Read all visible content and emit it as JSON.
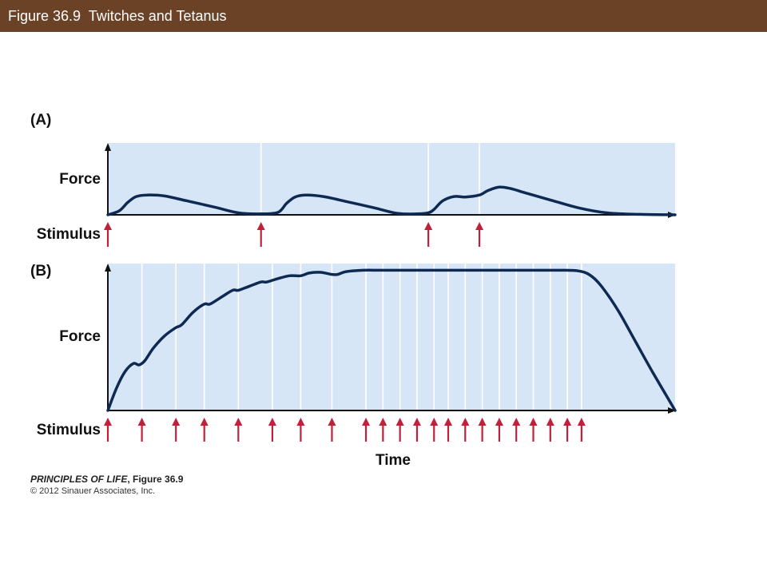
{
  "header": {
    "title": "Figure 36.9  Twitches and Tetanus"
  },
  "chart_data": [
    {
      "type": "line",
      "panel_label": "(A)",
      "ylabel": "Force",
      "stimulus_label": "Stimulus",
      "xlim": [
        0,
        100
      ],
      "ylim": [
        0,
        100
      ],
      "stimuli": [
        0,
        27,
        56.5,
        65.5
      ],
      "x": [
        0,
        2,
        3.5,
        5,
        7,
        10,
        14,
        19,
        23,
        27,
        30,
        31.5,
        33,
        35,
        38,
        42,
        47,
        51,
        54.5,
        56.5,
        57.5,
        59,
        61,
        63,
        65.5,
        67,
        69,
        71,
        74,
        78,
        83,
        88,
        94,
        100
      ],
      "y": [
        0,
        8,
        25,
        37,
        40,
        38,
        28,
        15,
        4,
        2,
        5,
        23,
        36,
        40,
        37,
        27,
        14,
        3,
        2,
        4,
        11,
        28,
        37,
        36,
        40,
        49,
        56,
        53,
        43,
        30,
        14,
        4,
        1,
        0
      ],
      "line_color": "#0e2a52",
      "background": "#d6e6f6",
      "arrow_color": "#c0213a"
    },
    {
      "type": "line",
      "panel_label": "(B)",
      "ylabel": "Force",
      "stimulus_label": "Stimulus",
      "xlabel": "Time",
      "xlim": [
        0,
        100
      ],
      "ylim": [
        0,
        100
      ],
      "stimuli": [
        0,
        6,
        12,
        17,
        23,
        29,
        34,
        39.5,
        45.5,
        48.5,
        51.5,
        54.5,
        57.5,
        60,
        63,
        66,
        69,
        72,
        75,
        78,
        81,
        83.5
      ],
      "x": [
        0,
        1.5,
        3,
        4.5,
        5.5,
        6.5,
        8,
        10,
        12,
        13,
        15,
        17,
        18,
        20,
        22,
        23,
        25,
        27,
        28,
        30,
        32,
        34,
        35.5,
        37.5,
        39.5,
        40.5,
        42,
        45,
        48,
        52,
        57,
        62,
        67,
        72,
        77,
        80,
        83,
        85,
        87,
        90,
        93,
        96,
        100
      ],
      "y": [
        0,
        16,
        28,
        34,
        33,
        36,
        45,
        54,
        60,
        62,
        71,
        77,
        77,
        82,
        87,
        87,
        90,
        93,
        93,
        95.5,
        97.5,
        97.5,
        99.5,
        100,
        98.5,
        98.5,
        100.5,
        101.5,
        101.5,
        101.5,
        101.5,
        101.5,
        101.5,
        101.5,
        101.5,
        101.5,
        101,
        98,
        90,
        72,
        50,
        28,
        0
      ],
      "line_color": "#0e2a52",
      "background": "#d6e6f6",
      "arrow_color": "#c0213a"
    }
  ],
  "credit": {
    "book": "PRINCIPLES OF LIFE",
    "figure": ", Figure 36.9",
    "copyright": "© 2012 Sinauer Associates, Inc."
  }
}
